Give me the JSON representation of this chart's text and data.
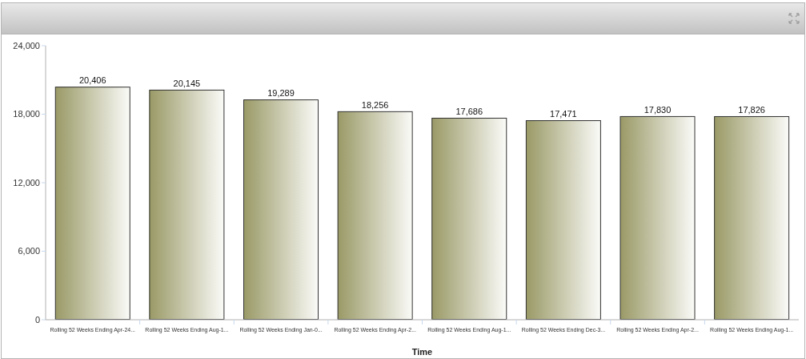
{
  "chart_data": {
    "type": "bar",
    "xlabel": "Time",
    "categories": [
      "Rolling 52 Weeks Ending Apr-24...",
      "Rolling 52 Weeks Ending Aug-1...",
      "Rolling 52 Weeks Ending Jan-0...",
      "Rolling 52 Weeks Ending Apr-2...",
      "Rolling 52 Weeks Ending Aug-1...",
      "Rolling 52 Weeks Ending Dec-3...",
      "Rolling 52 Weeks Ending Apr-2...",
      "Rolling 52 Weeks Ending Aug-1..."
    ],
    "values": [
      20406,
      20145,
      19289,
      18256,
      17686,
      17471,
      17830,
      17826
    ],
    "value_labels": [
      "20,406",
      "20,145",
      "19,289",
      "18,256",
      "17,686",
      "17,471",
      "17,830",
      "17,826"
    ],
    "color": "#999966",
    "ylim": [
      0,
      24000
    ],
    "yticks": [
      0,
      {
        "value": 6000,
        "label": "6,000"
      },
      {
        "value": 12000,
        "label": "12,000"
      },
      {
        "value": 18000,
        "label": "18,000"
      },
      {
        "value": 24000,
        "label": "24,000"
      }
    ]
  }
}
